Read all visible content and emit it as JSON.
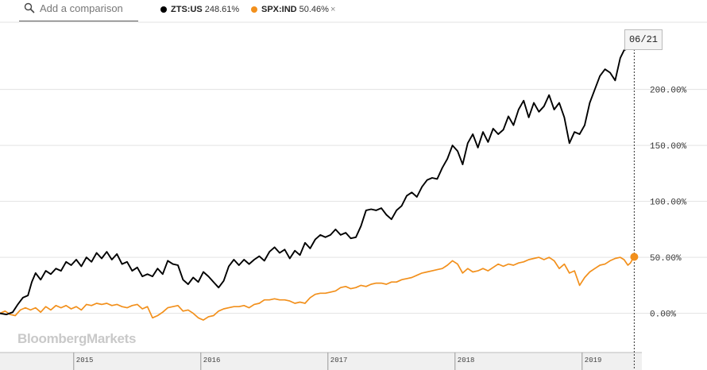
{
  "search": {
    "placeholder": "Add a comparison",
    "icon": "search-icon"
  },
  "legend": [
    {
      "symbol": "ZTS:US",
      "pct": "248.61%",
      "color": "#000000",
      "closable": false
    },
    {
      "symbol": "SPX:IND",
      "pct": "50.46%",
      "color": "#f2901c",
      "closable": true,
      "close_label": "×"
    }
  ],
  "tooltip": {
    "date": "06/21"
  },
  "watermark": "BloombergMarkets",
  "chart_data": {
    "type": "line",
    "title": "",
    "xlabel": "",
    "ylabel": "",
    "ylim": [
      -35,
      260
    ],
    "xlim": [
      2014.42,
      2019.47
    ],
    "grid": true,
    "x_ticks": [
      {
        "label": "2015",
        "value": 2015.0
      },
      {
        "label": "2016",
        "value": 2016.0
      },
      {
        "label": "2017",
        "value": 2017.0
      },
      {
        "label": "2018",
        "value": 2018.0
      },
      {
        "label": "2019",
        "value": 2019.0
      }
    ],
    "y_ticks": [
      {
        "label": "0.00%",
        "value": 0
      },
      {
        "label": "50.00%",
        "value": 50
      },
      {
        "label": "100.00%",
        "value": 100
      },
      {
        "label": "150.00%",
        "value": 150
      },
      {
        "label": "200.00%",
        "value": 200
      }
    ],
    "series": [
      {
        "name": "ZTS:US",
        "color": "#000000",
        "points": [
          [
            2014.42,
            0
          ],
          [
            2014.47,
            -1
          ],
          [
            2014.52,
            1
          ],
          [
            2014.56,
            8
          ],
          [
            2014.6,
            14
          ],
          [
            2014.64,
            16
          ],
          [
            2014.67,
            28
          ],
          [
            2014.7,
            36
          ],
          [
            2014.74,
            30
          ],
          [
            2014.78,
            38
          ],
          [
            2014.82,
            35
          ],
          [
            2014.86,
            40
          ],
          [
            2014.9,
            38
          ],
          [
            2014.94,
            46
          ],
          [
            2014.98,
            43
          ],
          [
            2015.02,
            48
          ],
          [
            2015.06,
            42
          ],
          [
            2015.1,
            50
          ],
          [
            2015.14,
            46
          ],
          [
            2015.18,
            54
          ],
          [
            2015.22,
            49
          ],
          [
            2015.26,
            55
          ],
          [
            2015.3,
            48
          ],
          [
            2015.34,
            53
          ],
          [
            2015.38,
            44
          ],
          [
            2015.42,
            46
          ],
          [
            2015.46,
            38
          ],
          [
            2015.5,
            41
          ],
          [
            2015.54,
            33
          ],
          [
            2015.58,
            35
          ],
          [
            2015.62,
            33
          ],
          [
            2015.66,
            40
          ],
          [
            2015.7,
            35
          ],
          [
            2015.74,
            47
          ],
          [
            2015.78,
            44
          ],
          [
            2015.82,
            43
          ],
          [
            2015.86,
            30
          ],
          [
            2015.9,
            26
          ],
          [
            2015.94,
            32
          ],
          [
            2015.98,
            28
          ],
          [
            2016.02,
            37
          ],
          [
            2016.06,
            33
          ],
          [
            2016.1,
            28
          ],
          [
            2016.14,
            23
          ],
          [
            2016.18,
            29
          ],
          [
            2016.22,
            42
          ],
          [
            2016.26,
            48
          ],
          [
            2016.3,
            43
          ],
          [
            2016.34,
            48
          ],
          [
            2016.38,
            44
          ],
          [
            2016.42,
            48
          ],
          [
            2016.46,
            51
          ],
          [
            2016.5,
            47
          ],
          [
            2016.54,
            55
          ],
          [
            2016.58,
            59
          ],
          [
            2016.62,
            54
          ],
          [
            2016.66,
            57
          ],
          [
            2016.7,
            49
          ],
          [
            2016.74,
            56
          ],
          [
            2016.78,
            52
          ],
          [
            2016.82,
            63
          ],
          [
            2016.86,
            58
          ],
          [
            2016.9,
            66
          ],
          [
            2016.94,
            70
          ],
          [
            2016.98,
            68
          ],
          [
            2017.02,
            70
          ],
          [
            2017.06,
            75
          ],
          [
            2017.1,
            70
          ],
          [
            2017.14,
            72
          ],
          [
            2017.18,
            67
          ],
          [
            2017.22,
            68
          ],
          [
            2017.26,
            78
          ],
          [
            2017.3,
            92
          ],
          [
            2017.34,
            93
          ],
          [
            2017.38,
            92
          ],
          [
            2017.42,
            94
          ],
          [
            2017.46,
            88
          ],
          [
            2017.5,
            84
          ],
          [
            2017.54,
            92
          ],
          [
            2017.58,
            96
          ],
          [
            2017.62,
            105
          ],
          [
            2017.66,
            108
          ],
          [
            2017.7,
            104
          ],
          [
            2017.74,
            113
          ],
          [
            2017.78,
            119
          ],
          [
            2017.82,
            121
          ],
          [
            2017.86,
            120
          ],
          [
            2017.9,
            130
          ],
          [
            2017.94,
            138
          ],
          [
            2017.98,
            150
          ],
          [
            2018.02,
            145
          ],
          [
            2018.06,
            133
          ],
          [
            2018.1,
            152
          ],
          [
            2018.14,
            160
          ],
          [
            2018.18,
            148
          ],
          [
            2018.22,
            162
          ],
          [
            2018.26,
            153
          ],
          [
            2018.3,
            165
          ],
          [
            2018.34,
            160
          ],
          [
            2018.38,
            164
          ],
          [
            2018.42,
            176
          ],
          [
            2018.46,
            168
          ],
          [
            2018.5,
            182
          ],
          [
            2018.54,
            190
          ],
          [
            2018.58,
            175
          ],
          [
            2018.62,
            188
          ],
          [
            2018.66,
            180
          ],
          [
            2018.7,
            185
          ],
          [
            2018.74,
            195
          ],
          [
            2018.78,
            182
          ],
          [
            2018.82,
            188
          ],
          [
            2018.86,
            175
          ],
          [
            2018.9,
            152
          ],
          [
            2018.94,
            162
          ],
          [
            2018.98,
            160
          ],
          [
            2019.02,
            168
          ],
          [
            2019.06,
            188
          ],
          [
            2019.1,
            200
          ],
          [
            2019.14,
            212
          ],
          [
            2019.18,
            218
          ],
          [
            2019.22,
            215
          ],
          [
            2019.26,
            208
          ],
          [
            2019.3,
            228
          ],
          [
            2019.33,
            235
          ],
          [
            2019.35,
            236
          ],
          [
            2019.37,
            240
          ],
          [
            2019.39,
            244
          ],
          [
            2019.4,
            244
          ],
          [
            2019.41,
            248.61
          ]
        ]
      },
      {
        "name": "SPX:IND",
        "color": "#f2901c",
        "points": [
          [
            2014.42,
            0
          ],
          [
            2014.46,
            2
          ],
          [
            2014.5,
            -1
          ],
          [
            2014.54,
            -2
          ],
          [
            2014.58,
            3
          ],
          [
            2014.62,
            5
          ],
          [
            2014.66,
            3
          ],
          [
            2014.7,
            5
          ],
          [
            2014.74,
            1
          ],
          [
            2014.78,
            6
          ],
          [
            2014.82,
            3
          ],
          [
            2014.86,
            7
          ],
          [
            2014.9,
            5
          ],
          [
            2014.94,
            7
          ],
          [
            2014.98,
            4
          ],
          [
            2015.02,
            6
          ],
          [
            2015.06,
            3
          ],
          [
            2015.1,
            8
          ],
          [
            2015.14,
            7
          ],
          [
            2015.18,
            9
          ],
          [
            2015.22,
            8
          ],
          [
            2015.26,
            9
          ],
          [
            2015.3,
            7
          ],
          [
            2015.34,
            8
          ],
          [
            2015.38,
            6
          ],
          [
            2015.42,
            5
          ],
          [
            2015.46,
            7
          ],
          [
            2015.5,
            8
          ],
          [
            2015.54,
            4
          ],
          [
            2015.58,
            6
          ],
          [
            2015.62,
            -4
          ],
          [
            2015.66,
            -2
          ],
          [
            2015.7,
            1
          ],
          [
            2015.74,
            5
          ],
          [
            2015.78,
            6
          ],
          [
            2015.82,
            7
          ],
          [
            2015.86,
            2
          ],
          [
            2015.9,
            3
          ],
          [
            2015.94,
            0
          ],
          [
            2015.98,
            -4
          ],
          [
            2016.02,
            -6
          ],
          [
            2016.06,
            -3
          ],
          [
            2016.1,
            -2
          ],
          [
            2016.14,
            2
          ],
          [
            2016.18,
            4
          ],
          [
            2016.22,
            5
          ],
          [
            2016.26,
            6
          ],
          [
            2016.3,
            6
          ],
          [
            2016.34,
            7
          ],
          [
            2016.38,
            5
          ],
          [
            2016.42,
            8
          ],
          [
            2016.46,
            9
          ],
          [
            2016.5,
            12
          ],
          [
            2016.54,
            12
          ],
          [
            2016.58,
            13
          ],
          [
            2016.62,
            12
          ],
          [
            2016.66,
            12
          ],
          [
            2016.7,
            11
          ],
          [
            2016.74,
            9
          ],
          [
            2016.78,
            10
          ],
          [
            2016.82,
            9
          ],
          [
            2016.86,
            14
          ],
          [
            2016.9,
            17
          ],
          [
            2016.94,
            18
          ],
          [
            2016.98,
            18
          ],
          [
            2017.02,
            19
          ],
          [
            2017.06,
            20
          ],
          [
            2017.1,
            23
          ],
          [
            2017.14,
            24
          ],
          [
            2017.18,
            22
          ],
          [
            2017.22,
            23
          ],
          [
            2017.26,
            25
          ],
          [
            2017.3,
            24
          ],
          [
            2017.34,
            26
          ],
          [
            2017.38,
            27
          ],
          [
            2017.42,
            27
          ],
          [
            2017.46,
            26
          ],
          [
            2017.5,
            28
          ],
          [
            2017.54,
            28
          ],
          [
            2017.58,
            30
          ],
          [
            2017.62,
            31
          ],
          [
            2017.66,
            32
          ],
          [
            2017.7,
            34
          ],
          [
            2017.74,
            36
          ],
          [
            2017.78,
            37
          ],
          [
            2017.82,
            38
          ],
          [
            2017.86,
            39
          ],
          [
            2017.9,
            40
          ],
          [
            2017.94,
            43
          ],
          [
            2017.98,
            47
          ],
          [
            2018.02,
            44
          ],
          [
            2018.06,
            36
          ],
          [
            2018.1,
            40
          ],
          [
            2018.14,
            37
          ],
          [
            2018.18,
            38
          ],
          [
            2018.22,
            40
          ],
          [
            2018.26,
            38
          ],
          [
            2018.3,
            41
          ],
          [
            2018.34,
            44
          ],
          [
            2018.38,
            42
          ],
          [
            2018.42,
            44
          ],
          [
            2018.46,
            43
          ],
          [
            2018.5,
            45
          ],
          [
            2018.54,
            46
          ],
          [
            2018.58,
            48
          ],
          [
            2018.62,
            49
          ],
          [
            2018.66,
            50
          ],
          [
            2018.7,
            48
          ],
          [
            2018.74,
            50
          ],
          [
            2018.78,
            47
          ],
          [
            2018.82,
            40
          ],
          [
            2018.86,
            44
          ],
          [
            2018.9,
            36
          ],
          [
            2018.94,
            38
          ],
          [
            2018.98,
            25
          ],
          [
            2019.02,
            32
          ],
          [
            2019.06,
            37
          ],
          [
            2019.1,
            40
          ],
          [
            2019.14,
            43
          ],
          [
            2019.18,
            44
          ],
          [
            2019.22,
            47
          ],
          [
            2019.26,
            49
          ],
          [
            2019.3,
            50
          ],
          [
            2019.33,
            48
          ],
          [
            2019.36,
            43
          ],
          [
            2019.38,
            45
          ],
          [
            2019.4,
            49
          ],
          [
            2019.41,
            50.46
          ]
        ]
      }
    ]
  }
}
